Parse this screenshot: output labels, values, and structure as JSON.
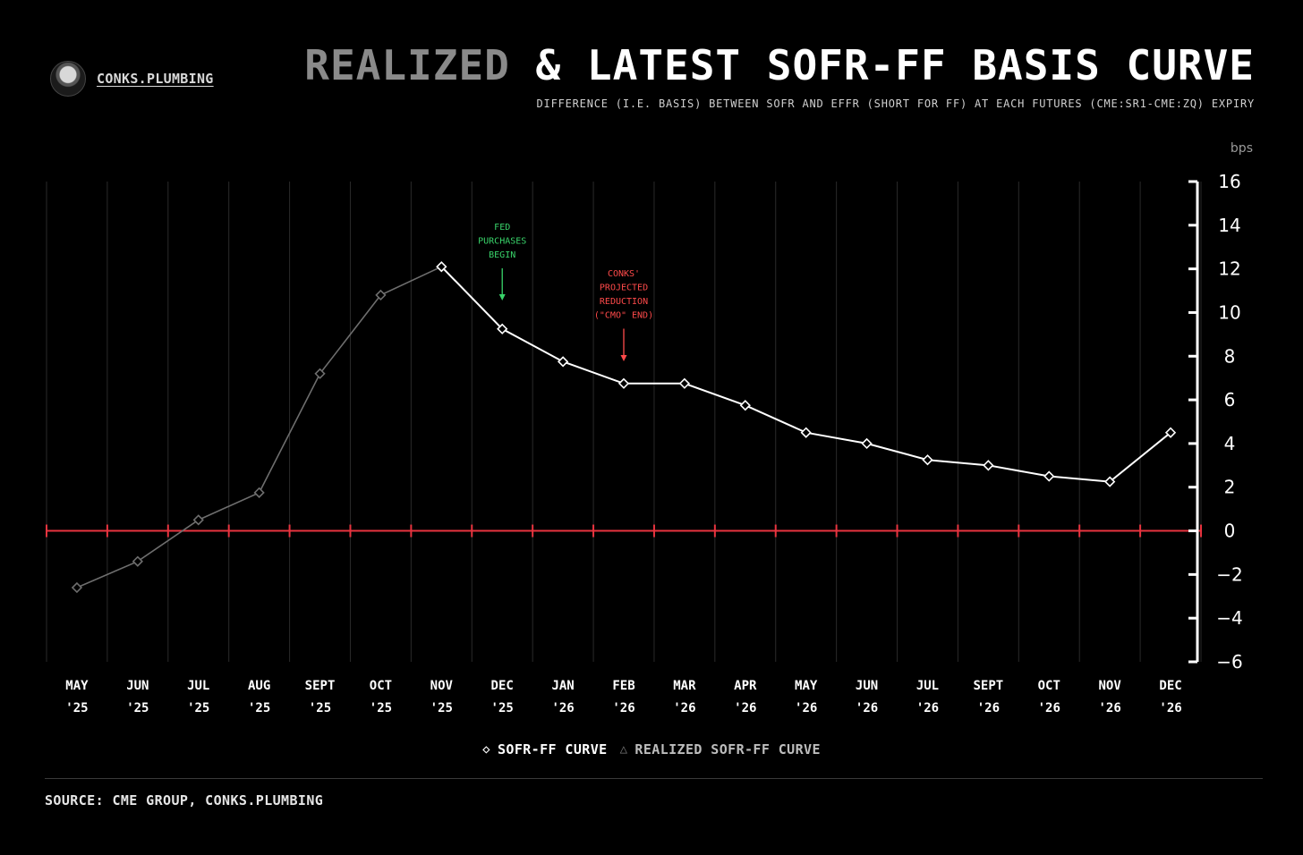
{
  "brand": {
    "name": "CONKS.PLUMBING"
  },
  "header": {
    "title_dim": "REALIZED",
    "title_main": "& LATEST SOFR-FF BASIS CURVE",
    "subtitle": "DIFFERENCE (I.E. BASIS) BETWEEN SOFR AND EFFR (SHORT FOR FF) AT EACH FUTURES (CME:SR1-CME:ZQ) EXPIRY"
  },
  "footer": {
    "source": "SOURCE: CME GROUP, CONKS.PLUMBING"
  },
  "colors": {
    "background": "#000000",
    "curve": "#ffffff",
    "realized": "#6e6e6e",
    "zero_line": "#e8343f",
    "annotation_green": "#39d46a",
    "annotation_red": "#ff4a4a",
    "grid": "#2a2a2a"
  },
  "chart_data": {
    "type": "line",
    "unit_label": "bps",
    "y_axis_position": "right",
    "grid": "vertical",
    "legend_position": "bottom-center",
    "ylim": [
      -6,
      16
    ],
    "y_ticks": [
      16,
      14,
      12,
      10,
      8,
      6,
      4,
      2,
      0,
      -2,
      -4,
      -6
    ],
    "categories": [
      [
        "MAY",
        "'25"
      ],
      [
        "JUN",
        "'25"
      ],
      [
        "JUL",
        "'25"
      ],
      [
        "AUG",
        "'25"
      ],
      [
        "SEPT",
        "'25"
      ],
      [
        "OCT",
        "'25"
      ],
      [
        "NOV",
        "'25"
      ],
      [
        "DEC",
        "'25"
      ],
      [
        "JAN",
        "'26"
      ],
      [
        "FEB",
        "'26"
      ],
      [
        "MAR",
        "'26"
      ],
      [
        "APR",
        "'26"
      ],
      [
        "MAY",
        "'26"
      ],
      [
        "JUN",
        "'26"
      ],
      [
        "JUL",
        "'26"
      ],
      [
        "SEPT",
        "'26"
      ],
      [
        "OCT",
        "'26"
      ],
      [
        "NOV",
        "'26"
      ],
      [
        "DEC",
        "'26"
      ]
    ],
    "series": [
      {
        "name": "REALIZED SOFR-FF CURVE",
        "legend_symbol": "△",
        "color": "#6e6e6e",
        "values": [
          -2.6,
          -1.4,
          0.5,
          1.75,
          7.2,
          10.8,
          12.1,
          null,
          null,
          null,
          null,
          null,
          null,
          null,
          null,
          null,
          null,
          null,
          null
        ]
      },
      {
        "name": "SOFR-FF CURVE",
        "legend_symbol": "◇",
        "color": "#ffffff",
        "values": [
          null,
          null,
          null,
          null,
          null,
          null,
          12.1,
          9.25,
          7.75,
          6.75,
          6.75,
          5.75,
          4.5,
          4.0,
          3.25,
          3.0,
          2.5,
          2.25,
          4.5
        ]
      }
    ],
    "reference_line": {
      "y": 0
    },
    "annotations": [
      {
        "category_index": 7,
        "lines": [
          "FED",
          "PURCHASES",
          "BEGIN"
        ],
        "color": "#39d46a",
        "arrow": "down"
      },
      {
        "category_index": 9,
        "lines": [
          "CONKS'",
          "PROJECTED",
          "REDUCTION",
          "(\"CMO\" END)"
        ],
        "color": "#ff4a4a",
        "arrow": "down"
      }
    ]
  }
}
